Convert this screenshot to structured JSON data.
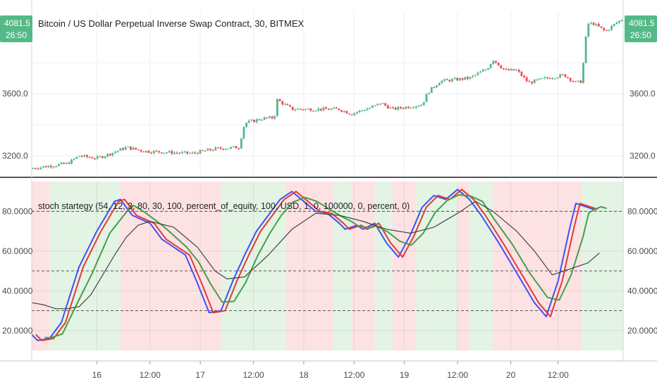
{
  "price_pane": {
    "title": "Bitcoin / US Dollar Perpetual Inverse Swap Contract, 30, BITMEX",
    "last_price": "4081.5",
    "countdown": "26:50",
    "y_ticks": [
      "3600.0",
      "3200.0"
    ],
    "up_color": "#53b987",
    "down_color": "#eb4d5c"
  },
  "indicator_pane": {
    "title": "stoch startegy (54, 12, 3, 80, 30, 100, percent_of_equity, 100, USD, 1, 0, 100000, 0, percent, 0)",
    "y_ticks": [
      "80.0000",
      "60.0000",
      "40.0000",
      "20.0000"
    ],
    "levels": [
      80,
      50,
      30
    ]
  },
  "x_ticks": [
    "16",
    "12:00",
    "17",
    "12:00",
    "18",
    "12:00",
    "19",
    "12:00",
    "20",
    "12:00"
  ],
  "chart_data": {
    "type": "line",
    "panes": [
      {
        "name": "price",
        "type": "candlestick",
        "x_range": [
          0,
          100
        ],
        "ylim": [
          3080,
          4130
        ],
        "close_path": [
          [
            0,
            3120
          ],
          [
            6,
            3150
          ],
          [
            8,
            3200
          ],
          [
            11,
            3185
          ],
          [
            13,
            3210
          ],
          [
            16,
            3255
          ],
          [
            19,
            3230
          ],
          [
            22,
            3225
          ],
          [
            27,
            3215
          ],
          [
            31,
            3245
          ],
          [
            35,
            3255
          ],
          [
            36,
            3410
          ],
          [
            39,
            3440
          ],
          [
            41,
            3445
          ],
          [
            41.5,
            3560
          ],
          [
            44,
            3500
          ],
          [
            46,
            3500
          ],
          [
            52,
            3500
          ],
          [
            54,
            3470
          ],
          [
            58,
            3520
          ],
          [
            59,
            3540
          ],
          [
            61,
            3500
          ],
          [
            66,
            3530
          ],
          [
            67,
            3610
          ],
          [
            69,
            3680
          ],
          [
            74,
            3700
          ],
          [
            77,
            3760
          ],
          [
            78,
            3820
          ],
          [
            80,
            3750
          ],
          [
            82,
            3750
          ],
          [
            84,
            3670
          ],
          [
            87,
            3700
          ],
          [
            90,
            3720
          ],
          [
            92,
            3670
          ],
          [
            93,
            3680
          ],
          [
            93.5,
            3900
          ],
          [
            94,
            4050
          ],
          [
            95,
            4050
          ],
          [
            97,
            4000
          ],
          [
            98,
            4030
          ],
          [
            99,
            4060
          ],
          [
            100,
            4081.5
          ]
        ]
      },
      {
        "name": "stoch",
        "ylim": [
          10,
          95
        ],
        "levels": [
          80,
          50,
          30
        ],
        "background_zones": [
          {
            "from": 0,
            "to": 3,
            "state": "short"
          },
          {
            "from": 3,
            "to": 15,
            "state": "long"
          },
          {
            "from": 15,
            "to": 32,
            "state": "short"
          },
          {
            "from": 32,
            "to": 43,
            "state": "long"
          },
          {
            "from": 43,
            "to": 51,
            "state": "short"
          },
          {
            "from": 51,
            "to": 54,
            "state": "long"
          },
          {
            "from": 54,
            "to": 58,
            "state": "short"
          },
          {
            "from": 58,
            "to": 61,
            "state": "long"
          },
          {
            "from": 61,
            "to": 65,
            "state": "short"
          },
          {
            "from": 65,
            "to": 72,
            "state": "long"
          },
          {
            "from": 72,
            "to": 74,
            "state": "short"
          },
          {
            "from": 74,
            "to": 78,
            "state": "long"
          },
          {
            "from": 78,
            "to": 93,
            "state": "short"
          },
          {
            "from": 93,
            "to": 100,
            "state": "long"
          }
        ],
        "series": [
          {
            "color": "#3f51f5",
            "width": 2,
            "lag": 0,
            "smooth": false,
            "points": [
              [
                0,
                18
              ],
              [
                1,
                15
              ],
              [
                3,
                16
              ],
              [
                5,
                24
              ],
              [
                8,
                52
              ],
              [
                11,
                70
              ],
              [
                14,
                85
              ],
              [
                15,
                86
              ],
              [
                17,
                78
              ],
              [
                20,
                74
              ],
              [
                22,
                66
              ],
              [
                24,
                62
              ],
              [
                26,
                58
              ],
              [
                28,
                44
              ],
              [
                30,
                29
              ],
              [
                32,
                30
              ],
              [
                34,
                45
              ],
              [
                36,
                58
              ],
              [
                38,
                70
              ],
              [
                40,
                78
              ],
              [
                42,
                86
              ],
              [
                44,
                90
              ],
              [
                46,
                85
              ],
              [
                48,
                80
              ],
              [
                50,
                79
              ],
              [
                52,
                74
              ],
              [
                53,
                71
              ],
              [
                55,
                73
              ],
              [
                56,
                71
              ],
              [
                58,
                74
              ],
              [
                60,
                64
              ],
              [
                62,
                57
              ],
              [
                64,
                68
              ],
              [
                66,
                82
              ],
              [
                68,
                88
              ],
              [
                70,
                86
              ],
              [
                72,
                91
              ],
              [
                74,
                86
              ],
              [
                76,
                78
              ],
              [
                79,
                64
              ],
              [
                82,
                49
              ],
              [
                85,
                34
              ],
              [
                87,
                27
              ],
              [
                89,
                45
              ],
              [
                91,
                72
              ],
              [
                92,
                84
              ],
              [
                94,
                82
              ],
              [
                95,
                81
              ]
            ]
          },
          {
            "color": "#e53935",
            "width": 2,
            "lag": 0.7,
            "smooth": false,
            "points": [
              [
                0,
                18
              ],
              [
                1,
                15
              ],
              [
                3,
                16
              ],
              [
                5,
                24
              ],
              [
                8,
                52
              ],
              [
                11,
                70
              ],
              [
                14,
                85
              ],
              [
                15,
                86
              ],
              [
                17,
                78
              ],
              [
                20,
                74
              ],
              [
                22,
                66
              ],
              [
                24,
                62
              ],
              [
                26,
                58
              ],
              [
                28,
                44
              ],
              [
                30,
                29
              ],
              [
                32,
                30
              ],
              [
                34,
                45
              ],
              [
                36,
                58
              ],
              [
                38,
                70
              ],
              [
                40,
                78
              ],
              [
                42,
                86
              ],
              [
                44,
                90
              ],
              [
                46,
                85
              ],
              [
                48,
                80
              ],
              [
                50,
                79
              ],
              [
                52,
                74
              ],
              [
                53,
                71
              ],
              [
                55,
                73
              ],
              [
                56,
                71
              ],
              [
                58,
                74
              ],
              [
                60,
                64
              ],
              [
                62,
                57
              ],
              [
                64,
                68
              ],
              [
                66,
                82
              ],
              [
                68,
                88
              ],
              [
                70,
                86
              ],
              [
                72,
                91
              ],
              [
                74,
                86
              ],
              [
                76,
                78
              ],
              [
                79,
                64
              ],
              [
                82,
                49
              ],
              [
                85,
                34
              ],
              [
                87,
                27
              ],
              [
                89,
                45
              ],
              [
                91,
                72
              ],
              [
                92,
                84
              ],
              [
                94,
                82
              ],
              [
                95,
                81
              ]
            ]
          },
          {
            "color": "#43a047",
            "width": 2,
            "lag": 2.2,
            "smooth": true,
            "points": [
              [
                0,
                18
              ],
              [
                1,
                15
              ],
              [
                3,
                16
              ],
              [
                5,
                24
              ],
              [
                8,
                52
              ],
              [
                11,
                70
              ],
              [
                14,
                85
              ],
              [
                15,
                86
              ],
              [
                17,
                78
              ],
              [
                20,
                74
              ],
              [
                22,
                66
              ],
              [
                24,
                62
              ],
              [
                26,
                58
              ],
              [
                28,
                44
              ],
              [
                30,
                29
              ],
              [
                32,
                30
              ],
              [
                34,
                45
              ],
              [
                36,
                58
              ],
              [
                38,
                70
              ],
              [
                40,
                78
              ],
              [
                42,
                86
              ],
              [
                44,
                90
              ],
              [
                46,
                85
              ],
              [
                48,
                80
              ],
              [
                50,
                79
              ],
              [
                52,
                74
              ],
              [
                53,
                71
              ],
              [
                55,
                73
              ],
              [
                56,
                71
              ],
              [
                58,
                74
              ],
              [
                60,
                64
              ],
              [
                62,
                57
              ],
              [
                64,
                68
              ],
              [
                66,
                82
              ],
              [
                68,
                88
              ],
              [
                70,
                86
              ],
              [
                72,
                91
              ],
              [
                74,
                86
              ],
              [
                76,
                78
              ],
              [
                79,
                64
              ],
              [
                82,
                49
              ],
              [
                85,
                34
              ],
              [
                87,
                27
              ],
              [
                89,
                45
              ],
              [
                91,
                72
              ],
              [
                92,
                84
              ],
              [
                94,
                82
              ],
              [
                95,
                81
              ]
            ]
          },
          {
            "color": "#444444",
            "width": 1.2,
            "lag": 0,
            "smooth": false,
            "points": [
              [
                0,
                34
              ],
              [
                2,
                33
              ],
              [
                4,
                31
              ],
              [
                6,
                31
              ],
              [
                8,
                32
              ],
              [
                10,
                38
              ],
              [
                14,
                58
              ],
              [
                16,
                67
              ],
              [
                18,
                73
              ],
              [
                20,
                75
              ],
              [
                24,
                72
              ],
              [
                28,
                62
              ],
              [
                31,
                50
              ],
              [
                33,
                46
              ],
              [
                36,
                47
              ],
              [
                40,
                58
              ],
              [
                44,
                71
              ],
              [
                48,
                79
              ],
              [
                52,
                78
              ],
              [
                56,
                75
              ],
              [
                60,
                71
              ],
              [
                64,
                69
              ],
              [
                68,
                72
              ],
              [
                72,
                79
              ],
              [
                75,
                85
              ],
              [
                78,
                80
              ],
              [
                82,
                70
              ],
              [
                85,
                60
              ],
              [
                88,
                48
              ],
              [
                91,
                51
              ],
              [
                94,
                54
              ],
              [
                96,
                59
              ]
            ]
          }
        ]
      }
    ]
  }
}
